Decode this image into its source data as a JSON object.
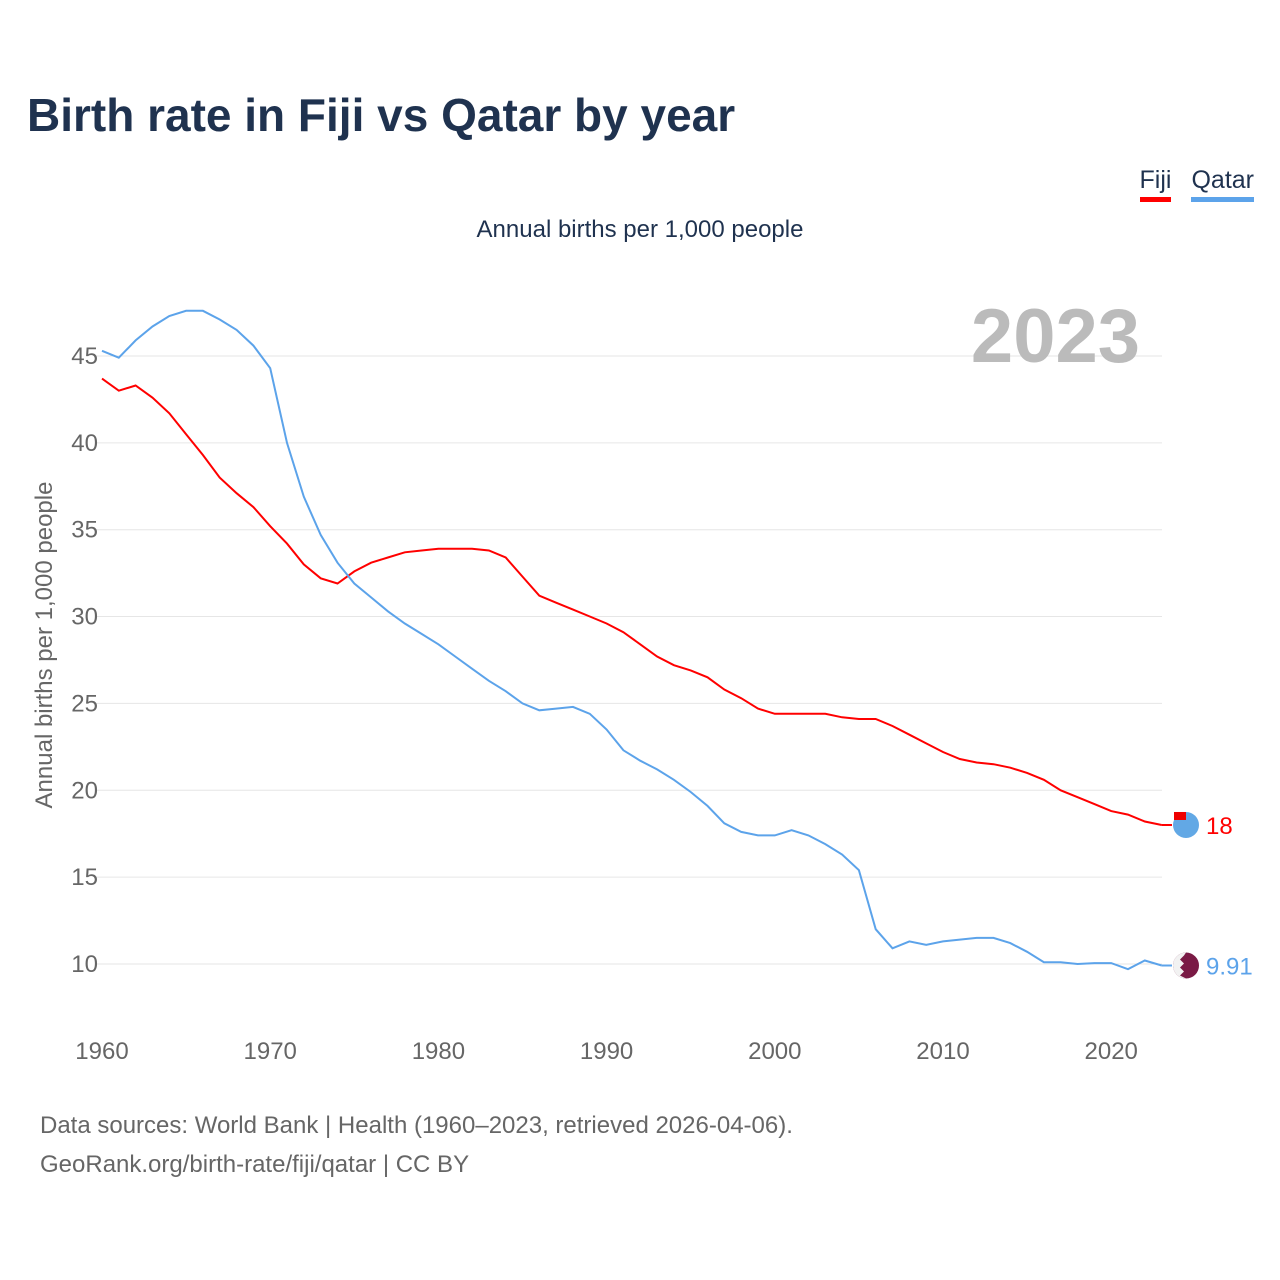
{
  "title": "Birth rate in Fiji vs Qatar by year",
  "subtitle": "Annual births per 1,000 people",
  "footer": {
    "line1": "Data sources: World Bank | Health (1960–2023, retrieved 2026-04-06).",
    "line2": "GeoRank.org/birth-rate/fiji/qatar | CC BY"
  },
  "chart_data": {
    "type": "line",
    "title": "Birth rate in Fiji vs Qatar by year",
    "ylabel": "Annual births per 1,000 people",
    "xlabel": "",
    "year_watermark": "2023",
    "xlim": [
      1960,
      2023
    ],
    "ylim": [
      7,
      48
    ],
    "x_ticks": [
      1960,
      1970,
      1980,
      1990,
      2000,
      2010,
      2020
    ],
    "y_ticks": [
      10,
      15,
      20,
      25,
      30,
      35,
      40,
      45
    ],
    "grid": true,
    "legend_position": "top-right",
    "x": [
      1960,
      1961,
      1962,
      1963,
      1964,
      1965,
      1966,
      1967,
      1968,
      1969,
      1970,
      1971,
      1972,
      1973,
      1974,
      1975,
      1976,
      1977,
      1978,
      1979,
      1980,
      1981,
      1982,
      1983,
      1984,
      1985,
      1986,
      1987,
      1988,
      1989,
      1990,
      1991,
      1992,
      1993,
      1994,
      1995,
      1996,
      1997,
      1998,
      1999,
      2000,
      2001,
      2002,
      2003,
      2004,
      2005,
      2006,
      2007,
      2008,
      2009,
      2010,
      2011,
      2012,
      2013,
      2014,
      2015,
      2016,
      2017,
      2018,
      2019,
      2020,
      2021,
      2022,
      2023
    ],
    "series": [
      {
        "name": "Fiji",
        "color": "#ff0000",
        "end_label": "18",
        "values": [
          43.7,
          43.0,
          43.3,
          42.6,
          41.7,
          40.5,
          39.3,
          38.0,
          37.1,
          36.3,
          35.2,
          34.2,
          33.0,
          32.2,
          31.9,
          32.6,
          33.1,
          33.4,
          33.7,
          33.8,
          33.9,
          33.9,
          33.9,
          33.8,
          33.4,
          32.3,
          31.2,
          30.8,
          30.4,
          30.0,
          29.6,
          29.1,
          28.4,
          27.7,
          27.2,
          26.9,
          26.5,
          25.8,
          25.3,
          24.7,
          24.4,
          24.4,
          24.4,
          24.4,
          24.2,
          24.1,
          24.1,
          23.7,
          23.2,
          22.7,
          22.2,
          21.8,
          21.6,
          21.5,
          21.3,
          21.0,
          20.6,
          20.0,
          19.6,
          19.2,
          18.8,
          18.6,
          18.2,
          18.0
        ]
      },
      {
        "name": "Qatar",
        "color": "#5ca3ea",
        "end_label": "9.91",
        "values": [
          45.3,
          44.9,
          45.9,
          46.7,
          47.3,
          47.6,
          47.6,
          47.1,
          46.5,
          45.6,
          44.3,
          40.0,
          36.9,
          34.7,
          33.1,
          31.9,
          31.1,
          30.3,
          29.6,
          29.0,
          28.4,
          27.7,
          27.0,
          26.3,
          25.7,
          25.0,
          24.6,
          24.7,
          24.8,
          24.4,
          23.5,
          22.3,
          21.7,
          21.2,
          20.6,
          19.9,
          19.1,
          18.1,
          17.6,
          17.4,
          17.4,
          17.7,
          17.4,
          16.9,
          16.3,
          15.4,
          12.0,
          10.9,
          11.3,
          11.1,
          11.3,
          11.4,
          11.5,
          11.5,
          11.2,
          10.7,
          10.1,
          10.1,
          10.0,
          10.05,
          10.05,
          9.7,
          10.2,
          9.91
        ]
      }
    ]
  }
}
